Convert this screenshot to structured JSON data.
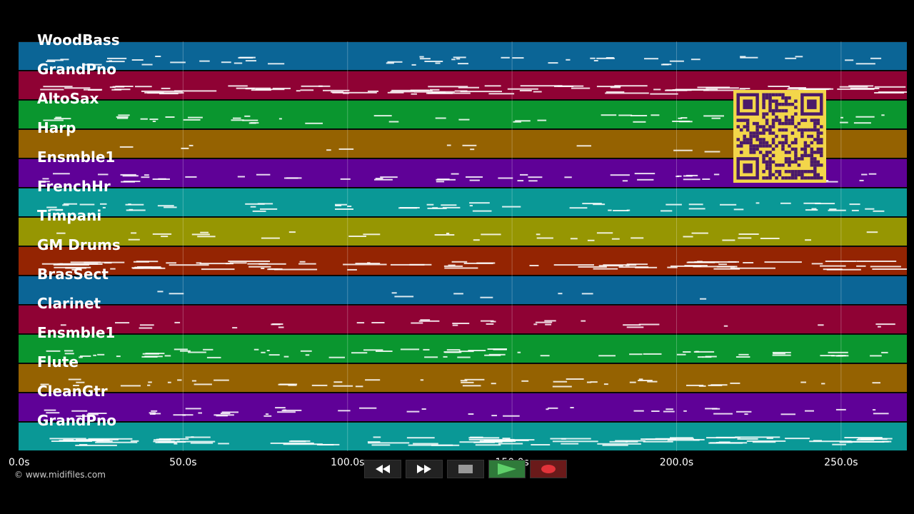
{
  "tracks": [
    {
      "name": "WoodBass",
      "color": "#0b6596"
    },
    {
      "name": "GrandPno",
      "color": "#8f0234"
    },
    {
      "name": "AltoSax",
      "color": "#0a962f"
    },
    {
      "name": "Harp",
      "color": "#956201"
    },
    {
      "name": "Ensmble1",
      "color": "#5f0197"
    },
    {
      "name": "FrenchHr",
      "color": "#0a9896"
    },
    {
      "name": "Timpani",
      "color": "#969602"
    },
    {
      "name": "GM Drums",
      "color": "#942402"
    },
    {
      "name": "BrasSect",
      "color": "#0b6596"
    },
    {
      "name": "Clarinet",
      "color": "#8f0234"
    },
    {
      "name": "Ensmble1",
      "color": "#0a962f"
    },
    {
      "name": "Flute",
      "color": "#956201"
    },
    {
      "name": "CleanGtr",
      "color": "#5f0197"
    },
    {
      "name": "GrandPno",
      "color": "#0a9896"
    }
  ],
  "timeline": {
    "ticks": [
      "0.0s",
      "50.0s",
      "100.0s",
      "150.0s",
      "200.0s",
      "250.0s"
    ],
    "tick_seconds": [
      0,
      50,
      100,
      150,
      200,
      250
    ],
    "duration_seconds": 270
  },
  "copyright": "© www.midifiles.com",
  "transport": {
    "rewind_icon": "rewind-icon",
    "forward_icon": "fast-forward-icon",
    "stop_icon": "stop-icon",
    "play_icon": "play-icon",
    "record_icon": "record-icon"
  },
  "qr_icon": "qr-code-icon"
}
